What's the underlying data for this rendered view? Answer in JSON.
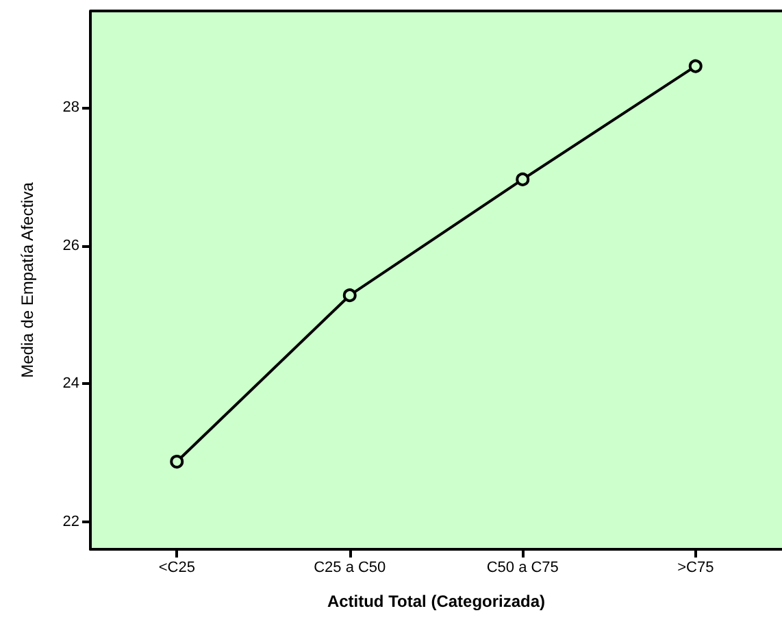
{
  "chart_data": {
    "type": "line",
    "xlabel": "Actitud Total (Categorizada)",
    "ylabel": "Media de Empatía Afectiva",
    "categories": [
      "<C25",
      "C25 a C50",
      "C50 a C75",
      ">C75"
    ],
    "series": [
      {
        "color": "#000000",
        "values": [
          22.87,
          25.28,
          26.96,
          28.6
        ]
      }
    ],
    "ylim": [
      21.6,
      29.4
    ],
    "yticks": [
      22,
      24,
      26,
      28
    ],
    "grid": false,
    "marker": "circle",
    "line_style": "solid"
  }
}
